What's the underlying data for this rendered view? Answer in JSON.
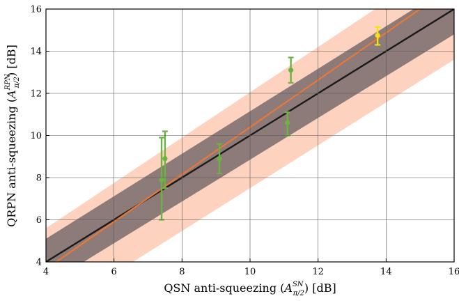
{
  "chart_data": {
    "type": "scatter",
    "xlabel": {
      "pre": "QSN anti-squeezing (",
      "sym": "A",
      "sup": "SN",
      "sub": "π/2",
      "post": ") [dB]"
    },
    "ylabel": {
      "pre": "QRPN anti-squeezing (",
      "sym": "A",
      "sup": "RPN",
      "sub": "π/2",
      "post": ") [dB]"
    },
    "xlim": [
      4,
      16
    ],
    "ylim": [
      4,
      16
    ],
    "xticks": [
      "4",
      "6",
      "8",
      "10",
      "12",
      "14",
      "16"
    ],
    "yticks": [
      "4",
      "6",
      "8",
      "10",
      "12",
      "14",
      "16"
    ],
    "grid": true,
    "identity_line": {
      "color": "#1a1a1a",
      "x": [
        4,
        16
      ],
      "y": [
        4,
        16
      ]
    },
    "gray_band": {
      "color": "#8c7b78",
      "lower": [
        [
          4,
          2.9
        ],
        [
          16,
          14.8
        ]
      ],
      "upper": [
        [
          4,
          5.1
        ],
        [
          16,
          17.2
        ]
      ]
    },
    "peach_band": {
      "color": "#fdd3bf",
      "lower": [
        [
          4,
          1.4
        ],
        [
          16,
          13.6
        ]
      ],
      "upper": [
        [
          4,
          5.6
        ],
        [
          16,
          18.5
        ]
      ]
    },
    "fit_line": {
      "color": "#e8773a",
      "x": [
        4.3,
        15.0
      ],
      "y": [
        4.0,
        16.0
      ]
    },
    "points": [
      {
        "x": 7.4,
        "y": 7.9,
        "yerr_low": 6.0,
        "yerr_high": 9.9,
        "color": "#6cb43f"
      },
      {
        "x": 7.5,
        "y": 8.9,
        "yerr_low": 7.5,
        "yerr_high": 10.2,
        "color": "#6cb43f"
      },
      {
        "x": 9.1,
        "y": 8.9,
        "yerr_low": 8.2,
        "yerr_high": 9.6,
        "color": "#6cb43f"
      },
      {
        "x": 11.1,
        "y": 10.6,
        "yerr_low": 10.0,
        "yerr_high": 11.1,
        "color": "#6cb43f"
      },
      {
        "x": 11.2,
        "y": 13.1,
        "yerr_low": 12.5,
        "yerr_high": 13.7,
        "color": "#6cb43f"
      },
      {
        "x": 13.75,
        "y": 14.75,
        "yerr_low": 14.3,
        "yerr_high": 15.15,
        "color": "#f2e21a"
      }
    ]
  }
}
